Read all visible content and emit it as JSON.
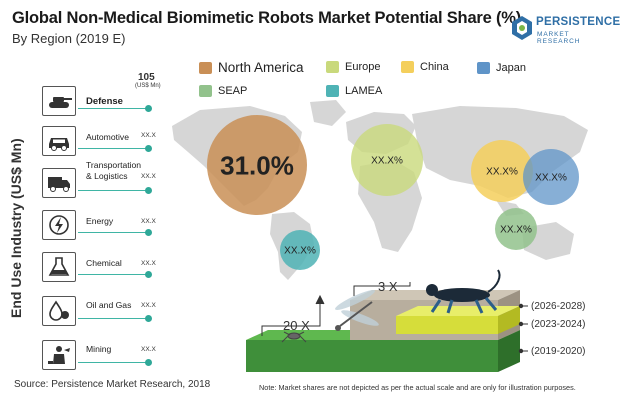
{
  "header": {
    "title": "Global Non-Medical Biomimetic Robots Market Potential Share (%)",
    "subtitle": "By Region (2019 E)"
  },
  "logo": {
    "brand": "PERSISTENCE",
    "tagline": "MARKET RESEARCH"
  },
  "colors": {
    "north_america": "#c98f56",
    "europe": "#c9d97c",
    "china": "#f4cf5c",
    "japan": "#5f94c8",
    "seap": "#92c28c",
    "lamea": "#4fb3b5",
    "accent_teal": "#2fa898",
    "map_grey": "#d6d6d6"
  },
  "industries": {
    "axis_label": "End Use Industry (US$ Mn)",
    "items": [
      {
        "label": "Defense",
        "value": "105",
        "unit": "(US$ Mn)",
        "icon": "tank-icon",
        "bold": true
      },
      {
        "label": "Automotive",
        "value": "XX.X",
        "icon": "car-icon"
      },
      {
        "label_line1": "Transportation",
        "label_line2": "& Logistics",
        "value": "XX.X",
        "icon": "truck-icon"
      },
      {
        "label": "Energy",
        "value": "XX.X",
        "icon": "lightning-icon"
      },
      {
        "label": "Chemical",
        "value": "XX.X",
        "icon": "flask-icon"
      },
      {
        "label": "Oil and Gas",
        "value": "XX.X",
        "icon": "oil-drop-icon"
      },
      {
        "label": "Mining",
        "value": "XX.X",
        "icon": "miner-icon"
      }
    ]
  },
  "legend": [
    {
      "name": "North America",
      "color": "#c98f56"
    },
    {
      "name": "Europe",
      "color": "#c9d97c"
    },
    {
      "name": "China",
      "color": "#f4cf5c"
    },
    {
      "name": "Japan",
      "color": "#5f94c8"
    },
    {
      "name": "SEAP",
      "color": "#92c28c"
    },
    {
      "name": "LAMEA",
      "color": "#4fb3b5"
    }
  ],
  "chart_data": {
    "type": "bubble-map",
    "title": "Global Non-Medical Biomimetic Robots Market Potential Share (%)",
    "subtitle": "By Region (2019 E)",
    "regions": [
      {
        "name": "North America",
        "label": "31.0%",
        "share": 31.0
      },
      {
        "name": "Europe",
        "label": "XX.X%"
      },
      {
        "name": "China",
        "label": "XX.X%"
      },
      {
        "name": "Japan",
        "label": "XX.X%"
      },
      {
        "name": "SEAP",
        "label": "XX.X%"
      },
      {
        "name": "LAMEA",
        "label": "XX.X%"
      }
    ],
    "growth_steps": [
      "20 X",
      "3 X"
    ],
    "periods": [
      "(2026-2028)",
      "(2023-2024)",
      "(2019-2020)"
    ]
  },
  "footer": {
    "source": "Source: Persistence Market Research, 2018",
    "note": "Note: Market shares are not depicted as per the actual scale and are only for illustration purposes."
  }
}
